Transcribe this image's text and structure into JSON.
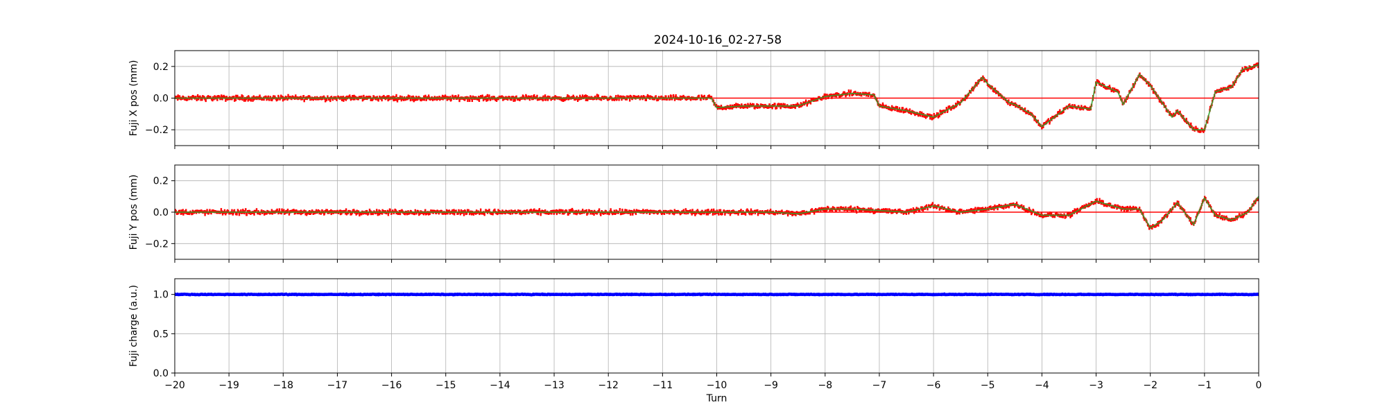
{
  "title": "2024-10-16_02-27-58",
  "chart_data": [
    {
      "type": "scatter",
      "panel": "x-position",
      "ylabel": "Fuji X pos (mm)",
      "xlabel": "",
      "xlim": [
        -20,
        0
      ],
      "ylim": [
        -0.3,
        0.3
      ],
      "yticks": [
        -0.2,
        0.0,
        0.2
      ],
      "ytick_labels": [
        "−0.2",
        "0.0",
        "0.2"
      ],
      "grid": true,
      "colors": {
        "scatter": "#ff0000",
        "fit": "#2ca02c",
        "reference": "#ff0000"
      },
      "reference_line": 0.0,
      "noise_amplitude": 0.02,
      "series": [
        {
          "x": [
            -20,
            -15,
            -10.1,
            -10,
            -9.5,
            -9,
            -8.5,
            -8,
            -7.5,
            -7.1,
            -7,
            -6.5,
            -6,
            -5.5,
            -5.1,
            -5,
            -4.6,
            -4.5,
            -4.2,
            -4,
            -3.5,
            -3.1,
            -3,
            -2.6,
            -2.5,
            -2.2,
            -2,
            -1.6,
            -1.5,
            -1.2,
            -1,
            -0.8,
            -0.5,
            -0.3,
            0
          ],
          "y": [
            0,
            0,
            0,
            -0.06,
            -0.05,
            -0.05,
            -0.05,
            0.01,
            0.03,
            0.02,
            -0.05,
            -0.08,
            -0.12,
            -0.03,
            0.13,
            0.09,
            -0.03,
            -0.04,
            -0.1,
            -0.18,
            -0.05,
            -0.07,
            0.1,
            0.04,
            -0.04,
            0.15,
            0.08,
            -0.12,
            -0.08,
            -0.2,
            -0.2,
            0.04,
            0.07,
            0.18,
            0.21
          ]
        }
      ]
    },
    {
      "type": "scatter",
      "panel": "y-position",
      "ylabel": "Fuji Y pos (mm)",
      "xlabel": "",
      "xlim": [
        -20,
        0
      ],
      "ylim": [
        -0.3,
        0.3
      ],
      "yticks": [
        -0.2,
        0.0,
        0.2
      ],
      "ytick_labels": [
        "−0.2",
        "0.0",
        "0.2"
      ],
      "grid": true,
      "colors": {
        "scatter": "#ff0000",
        "fit": "#2ca02c",
        "reference": "#ff0000"
      },
      "reference_line": 0.0,
      "noise_amplitude": 0.02,
      "series": [
        {
          "x": [
            -20,
            -15,
            -9,
            -8.5,
            -8,
            -7.5,
            -7,
            -6.5,
            -6,
            -5.5,
            -5,
            -4.5,
            -4,
            -3.5,
            -3,
            -2.5,
            -2.2,
            -2,
            -1.8,
            -1.5,
            -1.2,
            -1,
            -0.8,
            -0.5,
            -0.2,
            0
          ],
          "y": [
            0,
            0,
            0,
            -0.01,
            0.02,
            0.02,
            0.01,
            0.0,
            0.04,
            0.0,
            0.02,
            0.05,
            -0.02,
            -0.02,
            0.07,
            0.02,
            0.02,
            -0.1,
            -0.06,
            0.06,
            -0.08,
            0.09,
            -0.02,
            -0.05,
            0.0,
            0.1
          ]
        }
      ]
    },
    {
      "type": "scatter",
      "panel": "charge",
      "ylabel": "Fuji charge (a.u.)",
      "xlabel": "Turn",
      "xlim": [
        -20,
        0
      ],
      "ylim": [
        0,
        1.2
      ],
      "yticks": [
        0.0,
        0.5,
        1.0
      ],
      "ytick_labels": [
        "0.0",
        "0.5",
        "1.0"
      ],
      "xticks": [
        -20,
        -19,
        -18,
        -17,
        -16,
        -15,
        -14,
        -13,
        -12,
        -11,
        -10,
        -9,
        -8,
        -7,
        -6,
        -5,
        -4,
        -3,
        -2,
        -1,
        0
      ],
      "xtick_labels": [
        "−20",
        "−19",
        "−18",
        "−17",
        "−16",
        "−15",
        "−14",
        "−13",
        "−12",
        "−11",
        "−10",
        "−9",
        "−8",
        "−7",
        "−6",
        "−5",
        "−4",
        "−3",
        "−2",
        "−1",
        "0"
      ],
      "grid": true,
      "colors": {
        "scatter": "#0000ff"
      },
      "noise_amplitude": 0.006,
      "series": [
        {
          "x": [
            -20,
            0
          ],
          "y": [
            1.0,
            1.0
          ]
        }
      ]
    }
  ]
}
